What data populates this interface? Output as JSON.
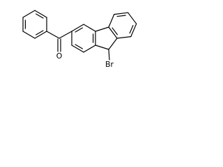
{
  "atoms": {
    "oxygen": "O",
    "bromine": "Br"
  }
}
